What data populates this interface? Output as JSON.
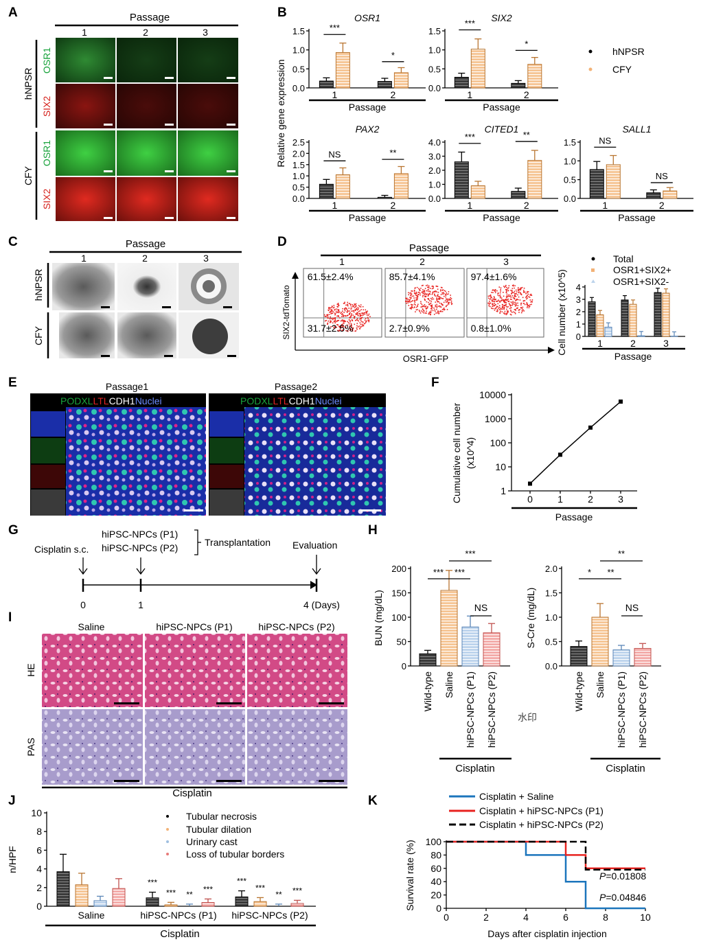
{
  "panel_letters": [
    "A",
    "B",
    "C",
    "D",
    "E",
    "F",
    "G",
    "H",
    "I",
    "J",
    "K"
  ],
  "colors": {
    "black_bar": "#3a3a3a",
    "orange": "#f2b277",
    "blue": "#9fbfe0",
    "red": "#e77a78",
    "green": "#1fa23a",
    "sixred": "#c8211c",
    "k_blue": "#1b75bc",
    "k_red": "#e8221f",
    "k_black": "#000000",
    "label_green": "#19a33c",
    "label_red": "#d5211b",
    "label_white": "#ffffff",
    "label_blue": "#6c8cff"
  },
  "a": {
    "header": "Passage",
    "cols": [
      "1",
      "2",
      "3"
    ],
    "rows": [
      {
        "group": "hNPSR",
        "markers": [
          "OSR1",
          "SIX2"
        ]
      },
      {
        "group": "CFY",
        "markers": [
          "OSR1",
          "SIX2"
        ]
      }
    ]
  },
  "b": {
    "ylabel": "Relative gene expression",
    "xlabel": "Passage",
    "legend": [
      "hNPSR",
      "CFY"
    ],
    "genes": [
      {
        "name": "OSR1",
        "ticks": [
          "0.0",
          "0.5",
          "1.0",
          "1.5"
        ],
        "ymax": 1.5,
        "vals": [
          [
            0.18,
            0.93
          ],
          [
            0.17,
            0.4
          ]
        ],
        "sig": [
          "***",
          "*"
        ]
      },
      {
        "name": "SIX2",
        "ticks": [
          "0.0",
          "0.5",
          "1.0",
          "1.5"
        ],
        "ymax": 1.5,
        "vals": [
          [
            0.28,
            1.02
          ],
          [
            0.12,
            0.62
          ]
        ],
        "sig": [
          "***",
          "*"
        ]
      },
      {
        "name": "PAX2",
        "ticks": [
          "0.0",
          "0.5",
          "1.0",
          "1.5",
          "2.0",
          "2.5"
        ],
        "ymax": 2.5,
        "vals": [
          [
            0.63,
            1.05
          ],
          [
            0.05,
            1.1
          ]
        ],
        "sig": [
          "NS",
          "**"
        ]
      },
      {
        "name": "CITED1",
        "ticks": [
          "0.0",
          "1.0",
          "2.0",
          "3.0",
          "4.0"
        ],
        "ymax": 4.0,
        "vals": [
          [
            2.6,
            0.9
          ],
          [
            0.5,
            2.7
          ]
        ],
        "sig": [
          "***",
          "**"
        ]
      },
      {
        "name": "SALL1",
        "ticks": [
          "0.0",
          "0.5",
          "1.0",
          "1.5"
        ],
        "ymax": 1.5,
        "vals": [
          [
            0.77,
            0.9
          ],
          [
            0.15,
            0.2
          ]
        ],
        "sig": [
          "NS",
          "NS"
        ]
      }
    ]
  },
  "c": {
    "header": "Passage",
    "cols": [
      "1",
      "2",
      "3"
    ],
    "rows": [
      "hNPSR",
      "CFY"
    ]
  },
  "d": {
    "header": "Passage",
    "cols": [
      "1",
      "2",
      "3"
    ],
    "ylabel": "SIX2-tdTomato",
    "xlabel": "OSR1-GFP",
    "upper": [
      "61.5±2.4%",
      "85.7±4.1%",
      "97.4±1.6%"
    ],
    "lower": [
      "31.7±2.5%",
      "2.7±0.9%",
      "0.8±1.0%"
    ],
    "bar_ylabel": "Cell number (x10^5)",
    "bar_xlabel": "Passage",
    "bar_ticks": [
      "0",
      "1",
      "2",
      "3",
      "4"
    ],
    "bar_legend": [
      "Total",
      "OSR1+SIX2+",
      "OSR1+SIX2-"
    ],
    "bar_vals": [
      [
        2.8,
        1.75,
        0.75
      ],
      [
        2.95,
        2.6,
        0.05
      ],
      [
        3.55,
        3.5,
        0.02
      ]
    ]
  },
  "e": {
    "titles": [
      "Passage1",
      "Passage2"
    ],
    "stain": [
      "PODXL",
      "LTL",
      "CDH1",
      "Nuclei"
    ]
  },
  "f": {
    "ylabel": "Cumulative cell number",
    "ylabel2": "(x10^4)",
    "xlabel": "Passage",
    "yticks": [
      "1",
      "10",
      "100",
      "1000",
      "10000"
    ],
    "xticks": [
      "0",
      "1",
      "2",
      "3"
    ],
    "vals": [
      2,
      32,
      430,
      5200
    ]
  },
  "g": {
    "treat": "Cisplatin s.c.",
    "p1": "hiPSC-NPCs (P1)",
    "p2": "hiPSC-NPCs (P2)",
    "transplant": "Transplantation",
    "eval": "Evaluation",
    "days": [
      "0",
      "1",
      "4 (Days)"
    ]
  },
  "h": {
    "bun": {
      "ylabel": "BUN (mg/dL)",
      "ticks": [
        "0",
        "50",
        "100",
        "150",
        "200"
      ],
      "ymax": 200,
      "vals": [
        25,
        155,
        80,
        68
      ],
      "sig": [
        "***",
        "***",
        "***",
        "NS"
      ]
    },
    "scre": {
      "ylabel": "S-Cre (mg/dL)",
      "ticks": [
        "0.0",
        "0.5",
        "1.0",
        "1.5",
        "2.0"
      ],
      "ymax": 2.0,
      "vals": [
        0.4,
        1.0,
        0.33,
        0.36
      ],
      "sig": [
        "*",
        "**",
        "**",
        "NS"
      ]
    },
    "groups": [
      "Wild-type",
      "Saline",
      "hiPSC-NPCs (P1)",
      "hiPSC-NPCs (P2)"
    ],
    "treatment": "Cisplatin",
    "watermark": "水印"
  },
  "i": {
    "cols": [
      "Saline",
      "hiPSC-NPCs (P1)",
      "hiPSC-NPCs (P2)"
    ],
    "rows": [
      "HE",
      "PAS"
    ],
    "footer": "Cisplatin"
  },
  "j": {
    "ylabel": "n/HPF",
    "ticks": [
      "0",
      "2",
      "4",
      "6",
      "8",
      "10"
    ],
    "legend": [
      "Tubular necrosis",
      "Tubular dilation",
      "Urinary cast",
      "Loss of tubular borders"
    ],
    "groups": [
      "Saline",
      "hiPSC-NPCs (P1)",
      "hiPSC-NPCs (P2)"
    ],
    "vals": [
      [
        3.7,
        2.3,
        0.6,
        1.9
      ],
      [
        0.9,
        0.15,
        0.02,
        0.4
      ],
      [
        1.0,
        0.5,
        0.02,
        0.3
      ]
    ],
    "sig": [
      [
        "***",
        "***",
        "**",
        "***"
      ],
      [
        "***",
        "***",
        "**",
        "***"
      ]
    ],
    "footer": "Cisplatin"
  },
  "k": {
    "ylabel": "Survival rate (%)",
    "xlabel": "Days after cisplatin injection",
    "yticks": [
      "0",
      "20",
      "40",
      "60",
      "80",
      "100"
    ],
    "xticks": [
      "0",
      "2",
      "4",
      "6",
      "8",
      "10"
    ],
    "legend": [
      "Cisplatin + Saline",
      "Cisplatin + hiPSC-NPCs (P1)",
      "Cisplatin + hiPSC-NPCs (P2)"
    ],
    "p1": "P=0.01808",
    "p2": "P=0.04846"
  }
}
